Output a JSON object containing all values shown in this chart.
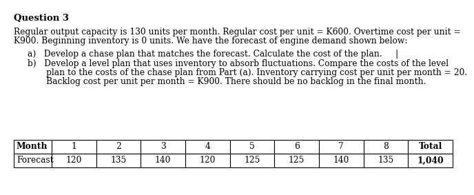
{
  "title": "Question 3",
  "para_line1": "Regular output capacity is 130 units per month. Regular cost per unit = K600. Overtime cost per unit =",
  "para_line2": "K900. Beginning inventory is 0 units. We have the forecast of engine demand shown below:",
  "bullet_a": "a)   Develop a chase plan that matches the forecast. Calculate the cost of the plan.     |",
  "bullet_b1": "b)   Develop a level plan that uses inventory to absorb fluctuations. Compare the costs of the level",
  "bullet_b2": "       plan to the costs of the chase plan from Part (a). Inventory carrying cost per unit per month = 20.",
  "bullet_b3": "       Backlog cost per unit per month = K900. There should be no backlog in the final month.",
  "table_headers": [
    "Month",
    "1",
    "2",
    "3",
    "4",
    "5",
    "6",
    "7",
    "8",
    "Total"
  ],
  "table_row_label": "Forecast",
  "table_values": [
    "120",
    "135",
    "140",
    "120",
    "125",
    "125",
    "140",
    "135",
    "1,040"
  ],
  "bg_color": "#ffffff",
  "text_color": "#000000",
  "font_size_title": 9.5,
  "font_size_body": 8.8,
  "font_size_table": 8.8
}
